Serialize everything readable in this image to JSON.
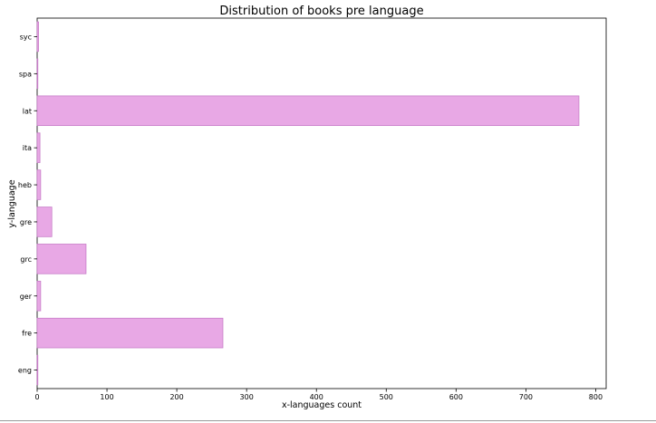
{
  "chart_data": {
    "type": "bar",
    "orientation": "horizontal",
    "title": "Distribution of books pre language",
    "xlabel": "x-languages count",
    "ylabel": "y-language",
    "categories": [
      "eng",
      "fre",
      "ger",
      "grc",
      "gre",
      "heb",
      "ita",
      "lat",
      "spa",
      "syc"
    ],
    "values": [
      1,
      266,
      5,
      70,
      21,
      5,
      4,
      776,
      1,
      2
    ],
    "xlim": [
      0,
      815
    ],
    "xticks": [
      0,
      100,
      200,
      300,
      400,
      500,
      600,
      700,
      800
    ],
    "grid": false,
    "bar_color": "#e8a8e5",
    "bar_edge_color": "#c77dc8"
  }
}
